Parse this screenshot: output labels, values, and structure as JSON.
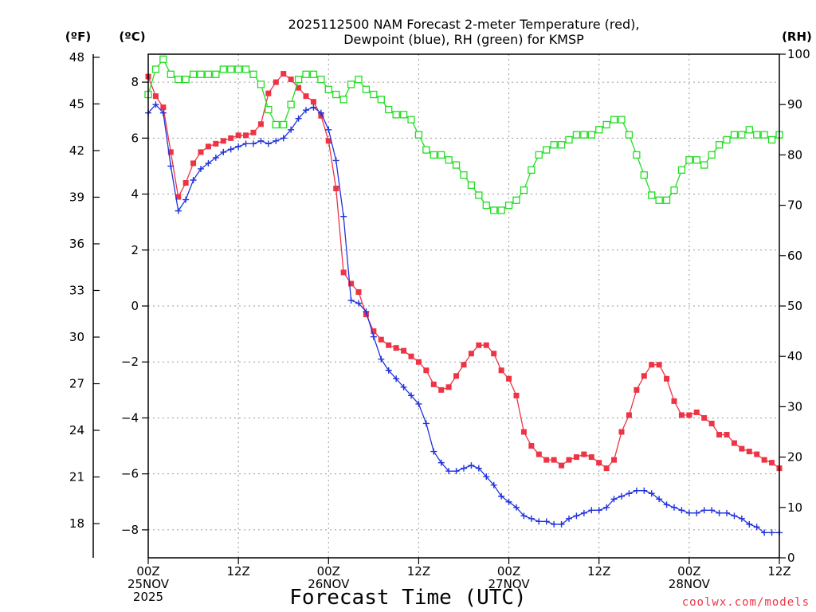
{
  "chart_data": {
    "type": "line",
    "title_lines": [
      "2025112500 NAM Forecast 2-meter Temperature (red),",
      "Dewpoint (blue), RH (green) for KMSP"
    ],
    "units": {
      "fahrenheit": "(ºF)",
      "celsius": "(ºC)",
      "rh": "(RH)"
    },
    "xlabel": "Forecast Time (UTC)",
    "credit": "coolwx.com/models",
    "colors": {
      "temperature": "#ee3344",
      "dewpoint": "#2233dd",
      "rh": "#22dd22"
    },
    "x_range_hours": [
      0,
      84
    ],
    "x_ticks": [
      {
        "hour": 0,
        "lines": [
          "00Z",
          "25NOV",
          "2025"
        ]
      },
      {
        "hour": 12,
        "lines": [
          "12Z"
        ]
      },
      {
        "hour": 24,
        "lines": [
          "00Z",
          "26NOV"
        ]
      },
      {
        "hour": 36,
        "lines": [
          "12Z"
        ]
      },
      {
        "hour": 48,
        "lines": [
          "00Z",
          "27NOV"
        ]
      },
      {
        "hour": 60,
        "lines": [
          "12Z"
        ]
      },
      {
        "hour": 72,
        "lines": [
          "00Z",
          "28NOV"
        ]
      },
      {
        "hour": 84,
        "lines": [
          "12Z"
        ]
      }
    ],
    "celsius_axis": {
      "ylim": [
        -9,
        9
      ],
      "ticks": [
        8,
        6,
        4,
        2,
        0,
        -2,
        -4,
        -6,
        -8
      ]
    },
    "fahrenheit_axis": {
      "ticks": [
        48,
        45,
        42,
        39,
        36,
        33,
        30,
        27,
        24,
        21,
        18
      ]
    },
    "rh_axis": {
      "ylim": [
        0,
        100
      ],
      "ticks": [
        100,
        90,
        80,
        70,
        60,
        50,
        40,
        30,
        20,
        10,
        0
      ]
    },
    "series": [
      {
        "name": "Temperature",
        "unit": "C",
        "marker": "square-filled",
        "points": [
          [
            0,
            8.2
          ],
          [
            1,
            7.5
          ],
          [
            2,
            7.1
          ],
          [
            3,
            5.5
          ],
          [
            4,
            3.9
          ],
          [
            5,
            4.4
          ],
          [
            6,
            5.1
          ],
          [
            7,
            5.5
          ],
          [
            8,
            5.7
          ],
          [
            9,
            5.8
          ],
          [
            10,
            5.9
          ],
          [
            11,
            6.0
          ],
          [
            12,
            6.1
          ],
          [
            13,
            6.1
          ],
          [
            14,
            6.2
          ],
          [
            15,
            6.5
          ],
          [
            16,
            7.6
          ],
          [
            17,
            8.0
          ],
          [
            18,
            8.3
          ],
          [
            19,
            8.1
          ],
          [
            20,
            7.8
          ],
          [
            21,
            7.5
          ],
          [
            22,
            7.3
          ],
          [
            23,
            6.8
          ],
          [
            24,
            5.9
          ],
          [
            25,
            4.2
          ],
          [
            26,
            1.2
          ],
          [
            27,
            0.8
          ],
          [
            28,
            0.5
          ],
          [
            29,
            -0.3
          ],
          [
            30,
            -0.9
          ],
          [
            31,
            -1.2
          ],
          [
            32,
            -1.4
          ],
          [
            33,
            -1.5
          ],
          [
            34,
            -1.6
          ],
          [
            35,
            -1.8
          ],
          [
            36,
            -2.0
          ],
          [
            37,
            -2.3
          ],
          [
            38,
            -2.8
          ],
          [
            39,
            -3.0
          ],
          [
            40,
            -2.9
          ],
          [
            41,
            -2.5
          ],
          [
            42,
            -2.1
          ],
          [
            43,
            -1.7
          ],
          [
            44,
            -1.4
          ],
          [
            45,
            -1.4
          ],
          [
            46,
            -1.7
          ],
          [
            47,
            -2.3
          ],
          [
            48,
            -2.6
          ],
          [
            49,
            -3.2
          ],
          [
            50,
            -4.5
          ],
          [
            51,
            -5.0
          ],
          [
            52,
            -5.3
          ],
          [
            53,
            -5.5
          ],
          [
            54,
            -5.5
          ],
          [
            55,
            -5.7
          ],
          [
            56,
            -5.5
          ],
          [
            57,
            -5.4
          ],
          [
            58,
            -5.3
          ],
          [
            59,
            -5.4
          ],
          [
            60,
            -5.6
          ],
          [
            61,
            -5.8
          ],
          [
            62,
            -5.5
          ],
          [
            63,
            -4.5
          ],
          [
            64,
            -3.9
          ],
          [
            65,
            -3.0
          ],
          [
            66,
            -2.5
          ],
          [
            67,
            -2.1
          ],
          [
            68,
            -2.1
          ],
          [
            69,
            -2.6
          ],
          [
            70,
            -3.4
          ],
          [
            71,
            -3.9
          ],
          [
            72,
            -3.9
          ],
          [
            73,
            -3.8
          ],
          [
            74,
            -4.0
          ],
          [
            75,
            -4.2
          ],
          [
            76,
            -4.6
          ],
          [
            77,
            -4.6
          ],
          [
            78,
            -4.9
          ],
          [
            79,
            -5.1
          ],
          [
            80,
            -5.2
          ],
          [
            81,
            -5.3
          ],
          [
            82,
            -5.5
          ],
          [
            83,
            -5.6
          ],
          [
            84,
            -5.8
          ]
        ]
      },
      {
        "name": "Dewpoint",
        "unit": "C",
        "marker": "plus",
        "points": [
          [
            0,
            6.9
          ],
          [
            1,
            7.2
          ],
          [
            2,
            6.9
          ],
          [
            3,
            5.0
          ],
          [
            4,
            3.4
          ],
          [
            5,
            3.8
          ],
          [
            6,
            4.5
          ],
          [
            7,
            4.9
          ],
          [
            8,
            5.1
          ],
          [
            9,
            5.3
          ],
          [
            10,
            5.5
          ],
          [
            11,
            5.6
          ],
          [
            12,
            5.7
          ],
          [
            13,
            5.8
          ],
          [
            14,
            5.8
          ],
          [
            15,
            5.9
          ],
          [
            16,
            5.8
          ],
          [
            17,
            5.9
          ],
          [
            18,
            6.0
          ],
          [
            19,
            6.3
          ],
          [
            20,
            6.7
          ],
          [
            21,
            7.0
          ],
          [
            22,
            7.1
          ],
          [
            23,
            6.9
          ],
          [
            24,
            6.3
          ],
          [
            25,
            5.2
          ],
          [
            26,
            3.2
          ],
          [
            27,
            0.2
          ],
          [
            28,
            0.1
          ],
          [
            29,
            -0.2
          ],
          [
            30,
            -1.1
          ],
          [
            31,
            -1.9
          ],
          [
            32,
            -2.3
          ],
          [
            33,
            -2.6
          ],
          [
            34,
            -2.9
          ],
          [
            35,
            -3.2
          ],
          [
            36,
            -3.5
          ],
          [
            37,
            -4.2
          ],
          [
            38,
            -5.2
          ],
          [
            39,
            -5.6
          ],
          [
            40,
            -5.9
          ],
          [
            41,
            -5.9
          ],
          [
            42,
            -5.8
          ],
          [
            43,
            -5.7
          ],
          [
            44,
            -5.8
          ],
          [
            45,
            -6.1
          ],
          [
            46,
            -6.4
          ],
          [
            47,
            -6.8
          ],
          [
            48,
            -7.0
          ],
          [
            49,
            -7.2
          ],
          [
            50,
            -7.5
          ],
          [
            51,
            -7.6
          ],
          [
            52,
            -7.7
          ],
          [
            53,
            -7.7
          ],
          [
            54,
            -7.8
          ],
          [
            55,
            -7.8
          ],
          [
            56,
            -7.6
          ],
          [
            57,
            -7.5
          ],
          [
            58,
            -7.4
          ],
          [
            59,
            -7.3
          ],
          [
            60,
            -7.3
          ],
          [
            61,
            -7.2
          ],
          [
            62,
            -6.9
          ],
          [
            63,
            -6.8
          ],
          [
            64,
            -6.7
          ],
          [
            65,
            -6.6
          ],
          [
            66,
            -6.6
          ],
          [
            67,
            -6.7
          ],
          [
            68,
            -6.9
          ],
          [
            69,
            -7.1
          ],
          [
            70,
            -7.2
          ],
          [
            71,
            -7.3
          ],
          [
            72,
            -7.4
          ],
          [
            73,
            -7.4
          ],
          [
            74,
            -7.3
          ],
          [
            75,
            -7.3
          ],
          [
            76,
            -7.4
          ],
          [
            77,
            -7.4
          ],
          [
            78,
            -7.5
          ],
          [
            79,
            -7.6
          ],
          [
            80,
            -7.8
          ],
          [
            81,
            -7.9
          ],
          [
            82,
            -8.1
          ],
          [
            83,
            -8.1
          ],
          [
            84,
            -8.1
          ]
        ]
      },
      {
        "name": "RH",
        "unit": "%",
        "marker": "square-open",
        "points": [
          [
            0,
            92
          ],
          [
            1,
            97
          ],
          [
            2,
            99
          ],
          [
            3,
            96
          ],
          [
            4,
            95
          ],
          [
            5,
            95
          ],
          [
            6,
            96
          ],
          [
            7,
            96
          ],
          [
            8,
            96
          ],
          [
            9,
            96
          ],
          [
            10,
            97
          ],
          [
            11,
            97
          ],
          [
            12,
            97
          ],
          [
            13,
            97
          ],
          [
            14,
            96
          ],
          [
            15,
            94
          ],
          [
            16,
            89
          ],
          [
            17,
            86
          ],
          [
            18,
            86
          ],
          [
            19,
            90
          ],
          [
            20,
            95
          ],
          [
            21,
            96
          ],
          [
            22,
            96
          ],
          [
            23,
            95
          ],
          [
            24,
            93
          ],
          [
            25,
            92
          ],
          [
            26,
            91
          ],
          [
            27,
            94
          ],
          [
            28,
            95
          ],
          [
            29,
            93
          ],
          [
            30,
            92
          ],
          [
            31,
            91
          ],
          [
            32,
            89
          ],
          [
            33,
            88
          ],
          [
            34,
            88
          ],
          [
            35,
            87
          ],
          [
            36,
            84
          ],
          [
            37,
            81
          ],
          [
            38,
            80
          ],
          [
            39,
            80
          ],
          [
            40,
            79
          ],
          [
            41,
            78
          ],
          [
            42,
            76
          ],
          [
            43,
            74
          ],
          [
            44,
            72
          ],
          [
            45,
            70
          ],
          [
            46,
            69
          ],
          [
            47,
            69
          ],
          [
            48,
            70
          ],
          [
            49,
            71
          ],
          [
            50,
            73
          ],
          [
            51,
            77
          ],
          [
            52,
            80
          ],
          [
            53,
            81
          ],
          [
            54,
            82
          ],
          [
            55,
            82
          ],
          [
            56,
            83
          ],
          [
            57,
            84
          ],
          [
            58,
            84
          ],
          [
            59,
            84
          ],
          [
            60,
            85
          ],
          [
            61,
            86
          ],
          [
            62,
            87
          ],
          [
            63,
            87
          ],
          [
            64,
            84
          ],
          [
            65,
            80
          ],
          [
            66,
            76
          ],
          [
            67,
            72
          ],
          [
            68,
            71
          ],
          [
            69,
            71
          ],
          [
            70,
            73
          ],
          [
            71,
            77
          ],
          [
            72,
            79
          ],
          [
            73,
            79
          ],
          [
            74,
            78
          ],
          [
            75,
            80
          ],
          [
            76,
            82
          ],
          [
            77,
            83
          ],
          [
            78,
            84
          ],
          [
            79,
            84
          ],
          [
            80,
            85
          ],
          [
            81,
            84
          ],
          [
            82,
            84
          ],
          [
            83,
            83
          ],
          [
            84,
            84
          ]
        ]
      }
    ]
  }
}
